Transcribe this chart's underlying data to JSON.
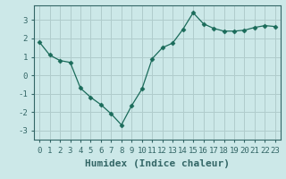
{
  "xlabel": "Humidex (Indice chaleur)",
  "x": [
    0,
    1,
    2,
    3,
    4,
    5,
    6,
    7,
    8,
    9,
    10,
    11,
    12,
    13,
    14,
    15,
    16,
    17,
    18,
    19,
    20,
    21,
    22,
    23
  ],
  "y": [
    1.8,
    1.1,
    0.8,
    0.7,
    -0.7,
    -1.2,
    -1.6,
    -2.1,
    -2.7,
    -1.65,
    -0.75,
    0.9,
    1.5,
    1.75,
    2.5,
    3.4,
    2.8,
    2.55,
    2.4,
    2.4,
    2.45,
    2.6,
    2.7,
    2.65
  ],
  "line_color": "#1a6b5a",
  "marker": "D",
  "marker_size": 2.5,
  "bg_color": "#cce8e8",
  "grid_color_major": "#b0cccc",
  "grid_color_minor": "#c4dede",
  "ylim": [
    -3.5,
    3.8
  ],
  "xlim": [
    -0.5,
    23.5
  ],
  "yticks": [
    -3,
    -2,
    -1,
    0,
    1,
    2,
    3
  ],
  "xticks": [
    0,
    1,
    2,
    3,
    4,
    5,
    6,
    7,
    8,
    9,
    10,
    11,
    12,
    13,
    14,
    15,
    16,
    17,
    18,
    19,
    20,
    21,
    22,
    23
  ],
  "tick_fontsize": 6.5,
  "xlabel_fontsize": 8,
  "axis_color": "#336666"
}
